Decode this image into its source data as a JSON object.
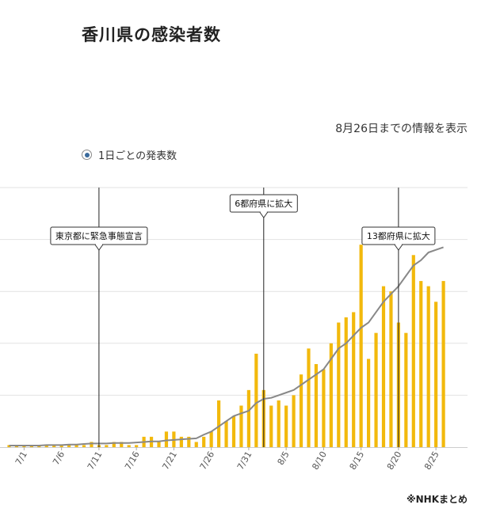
{
  "header": {
    "title": "香川県の感染者数",
    "until_text": "8月26日までの情報を表示",
    "radio_label": "1日ごとの発表数",
    "source": "※NHKまとめ"
  },
  "colors": {
    "bar": "#f2b90c",
    "line": "#888888",
    "grid": "#e2e2e2",
    "event": "#222222"
  },
  "chart_data": {
    "type": "bar",
    "x_start": "6/29",
    "x_end": "8/26",
    "x_tick_labels": [
      "7/1",
      "7/6",
      "7/11",
      "7/16",
      "7/21",
      "7/26",
      "7/31",
      "8/5",
      "8/10",
      "8/15",
      "8/20",
      "8/25"
    ],
    "ylim": [
      0,
      50
    ],
    "grid_y": [
      10,
      20,
      30,
      40,
      50
    ],
    "series": [
      {
        "kind": "bar",
        "values": [
          0,
          0,
          0,
          0,
          0,
          0,
          0,
          0,
          0,
          0,
          0,
          1,
          0,
          0,
          1,
          1,
          0,
          0,
          2,
          2,
          1,
          3,
          3,
          2,
          2,
          1,
          2,
          3,
          9,
          5,
          6,
          8,
          11,
          18,
          11,
          8,
          9,
          8,
          10,
          14,
          19,
          16,
          15,
          20,
          24,
          25,
          26,
          39,
          17,
          22,
          31,
          30,
          24,
          22,
          37,
          32,
          31,
          28,
          32
        ]
      },
      {
        "kind": "line",
        "values": [
          0.3,
          0.3,
          0.3,
          0.3,
          0.3,
          0.4,
          0.4,
          0.4,
          0.5,
          0.5,
          0.6,
          0.7,
          0.7,
          0.7,
          0.8,
          0.8,
          0.8,
          0.9,
          1.0,
          1.1,
          1.1,
          1.3,
          1.4,
          1.5,
          1.6,
          1.7,
          2.4,
          3.0,
          4.0,
          5.0,
          6.0,
          6.5,
          7.0,
          8.5,
          9.3,
          9.5,
          10.0,
          10.5,
          11.0,
          12.0,
          13.0,
          14.0,
          15.0,
          17.0,
          19.0,
          20.0,
          21.5,
          23.0,
          24.0,
          26.0,
          28.0,
          29.5,
          31.0,
          33.0,
          35.0,
          36.0,
          37.5,
          38.0,
          38.5
        ]
      }
    ],
    "events": [
      {
        "date": "7/11",
        "label": "東京都に緊急事態宣言"
      },
      {
        "date": "8/2",
        "label": "6都府県に拡大"
      },
      {
        "date": "8/20",
        "label": "13都府県に拡大"
      }
    ]
  }
}
